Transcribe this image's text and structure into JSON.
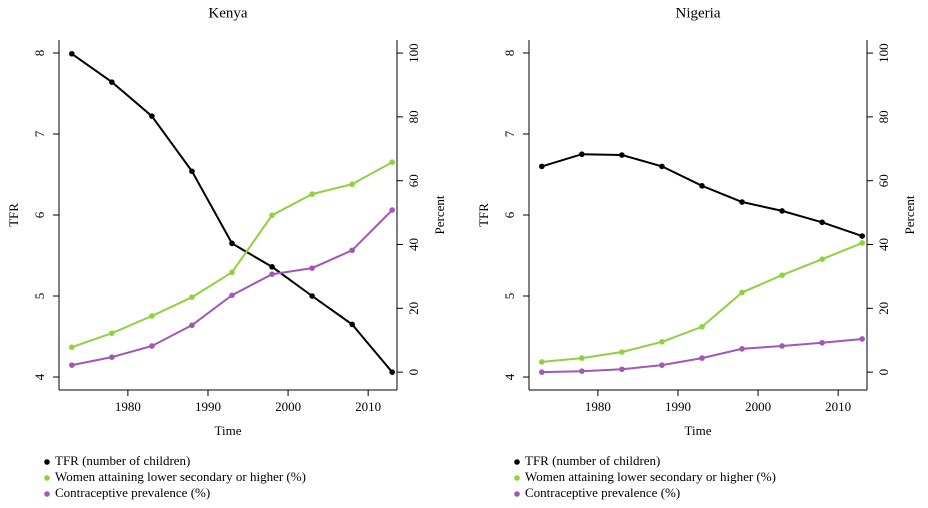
{
  "chart_data": [
    {
      "type": "line",
      "title": "Kenya",
      "xlabel": "Time",
      "ylabel": "TFR",
      "y2label": "Percent",
      "x": [
        1973,
        1978,
        1983,
        1988,
        1993,
        1998,
        2003,
        2008,
        2013
      ],
      "xlim": [
        1971.4,
        2013.6
      ],
      "xticks": [
        1980,
        1990,
        2000,
        2010
      ],
      "ylim": [
        3.84,
        8.16
      ],
      "yticks": [
        4,
        5,
        6,
        7,
        8
      ],
      "y2lim": [
        -5.6,
        104.1
      ],
      "y2ticks": [
        0,
        20,
        40,
        60,
        80,
        100
      ],
      "legend": "bottom",
      "series": [
        {
          "name": "TFR (number of children)",
          "color": "#000000",
          "values": [
            7.99,
            7.64,
            7.22,
            6.54,
            5.65,
            5.36,
            5.0,
            4.65,
            4.06
          ]
        },
        {
          "name": "Women attaining lower secondary or higher (%)",
          "color": "#8fd13f",
          "axis": "y2",
          "values": [
            7.8,
            12.2,
            17.6,
            23.5,
            31.3,
            49.2,
            55.8,
            58.9,
            65.8
          ]
        },
        {
          "name": "Contraceptive prevalence (%)",
          "color": "#a157b8",
          "axis": "y2",
          "values": [
            2.2,
            4.7,
            8.2,
            14.7,
            24.1,
            30.7,
            32.6,
            38.2,
            50.8
          ]
        }
      ]
    },
    {
      "type": "line",
      "title": "Nigeria",
      "xlabel": "Time",
      "ylabel": "TFR",
      "y2label": "Percent",
      "x": [
        1973,
        1978,
        1983,
        1988,
        1993,
        1998,
        2003,
        2008,
        2013
      ],
      "xlim": [
        1971.4,
        2013.6
      ],
      "xticks": [
        1980,
        1990,
        2000,
        2010
      ],
      "ylim": [
        3.84,
        8.16
      ],
      "yticks": [
        4,
        5,
        6,
        7,
        8
      ],
      "y2lim": [
        -5.6,
        104.1
      ],
      "y2ticks": [
        0,
        20,
        40,
        60,
        80,
        100
      ],
      "legend": "bottom",
      "series": [
        {
          "name": "TFR (number of children)",
          "color": "#000000",
          "values": [
            6.6,
            6.75,
            6.74,
            6.6,
            6.36,
            6.16,
            6.05,
            5.91,
            5.74
          ]
        },
        {
          "name": "Women attaining lower secondary or higher (%)",
          "color": "#8fd13f",
          "axis": "y2",
          "values": [
            3.2,
            4.4,
            6.3,
            9.5,
            14.2,
            25.0,
            30.4,
            35.4,
            40.5
          ]
        },
        {
          "name": "Contraceptive prevalence (%)",
          "color": "#a157b8",
          "axis": "y2",
          "values": [
            0.0,
            0.3,
            0.9,
            2.2,
            4.4,
            7.3,
            8.2,
            9.2,
            10.4
          ]
        }
      ]
    }
  ]
}
